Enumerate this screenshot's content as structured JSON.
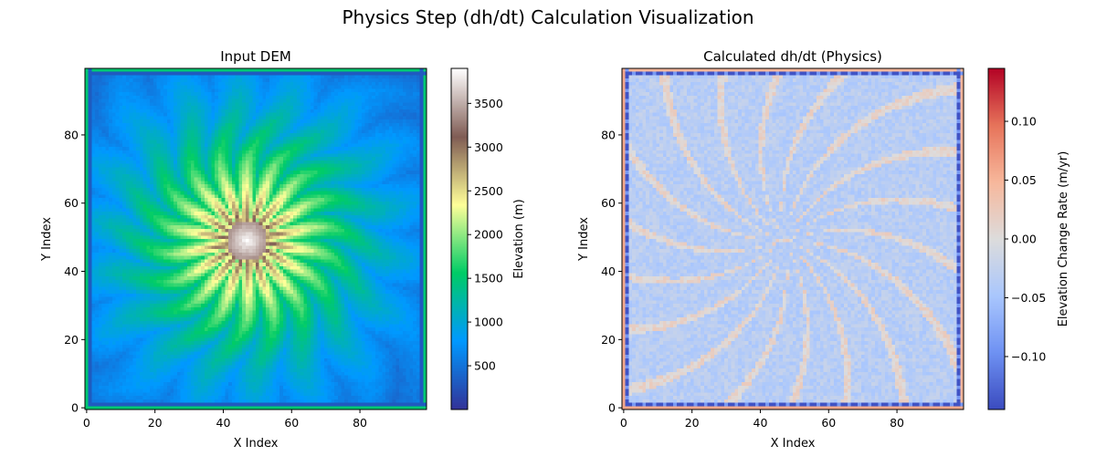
{
  "figure": {
    "title": "Physics Step (dh/dt) Calculation Visualization"
  },
  "chart_data": [
    {
      "type": "heatmap",
      "title": "Input DEM",
      "xlabel": "X Index",
      "ylabel": "Y Index",
      "xlim": [
        -0.5,
        99.5
      ],
      "ylim": [
        -0.5,
        99.5
      ],
      "x_ticks": [
        "0",
        "20",
        "40",
        "60",
        "80"
      ],
      "y_ticks": [
        "0",
        "20",
        "40",
        "60",
        "80"
      ],
      "grid_size": [
        100,
        100
      ],
      "colormap": "terrain",
      "colormap_stops": [
        "#333399",
        "#0099ff",
        "#00cc66",
        "#ffff99",
        "#805c54",
        "#ffffff"
      ],
      "description_fields": {
        "peak_location": [
          47,
          49
        ],
        "peak_value": 3850,
        "boundary_value": 1500,
        "pattern": "radial dendritic ridge-valley drainage network centred on peak"
      },
      "colorbar": {
        "label": "Elevation (m)",
        "range": [
          0,
          3900
        ],
        "ticks": [
          "500",
          "1000",
          "1500",
          "2000",
          "2500",
          "3000",
          "3500"
        ]
      }
    },
    {
      "type": "heatmap",
      "title": "Calculated dh/dt (Physics)",
      "xlabel": "X Index",
      "ylabel": "Y Index",
      "xlim": [
        -0.5,
        99.5
      ],
      "ylim": [
        -0.5,
        99.5
      ],
      "x_ticks": [
        "0",
        "20",
        "40",
        "60",
        "80"
      ],
      "y_ticks": [
        "0",
        "20",
        "40",
        "60",
        "80"
      ],
      "grid_size": [
        100,
        100
      ],
      "colormap": "coolwarm",
      "colormap_stops": [
        "#3b4cc0",
        "#6f92f3",
        "#aac7fd",
        "#dddcdc",
        "#f7b89c",
        "#e7745b",
        "#b40426"
      ],
      "description_fields": {
        "interior_range": [
          -0.04,
          0.03
        ],
        "boundary_ring_value": -0.14,
        "edge_value": 0.06,
        "pattern": "mostly near-zero slightly negative interior with faint radial positive channels; strongly negative inner boundary ring"
      },
      "colorbar": {
        "label": "Elevation Change Rate (m/yr)",
        "range": [
          -0.145,
          0.145
        ],
        "ticks": [
          "−0.10",
          "−0.05",
          "0.00",
          "0.05",
          "0.10"
        ]
      }
    }
  ]
}
